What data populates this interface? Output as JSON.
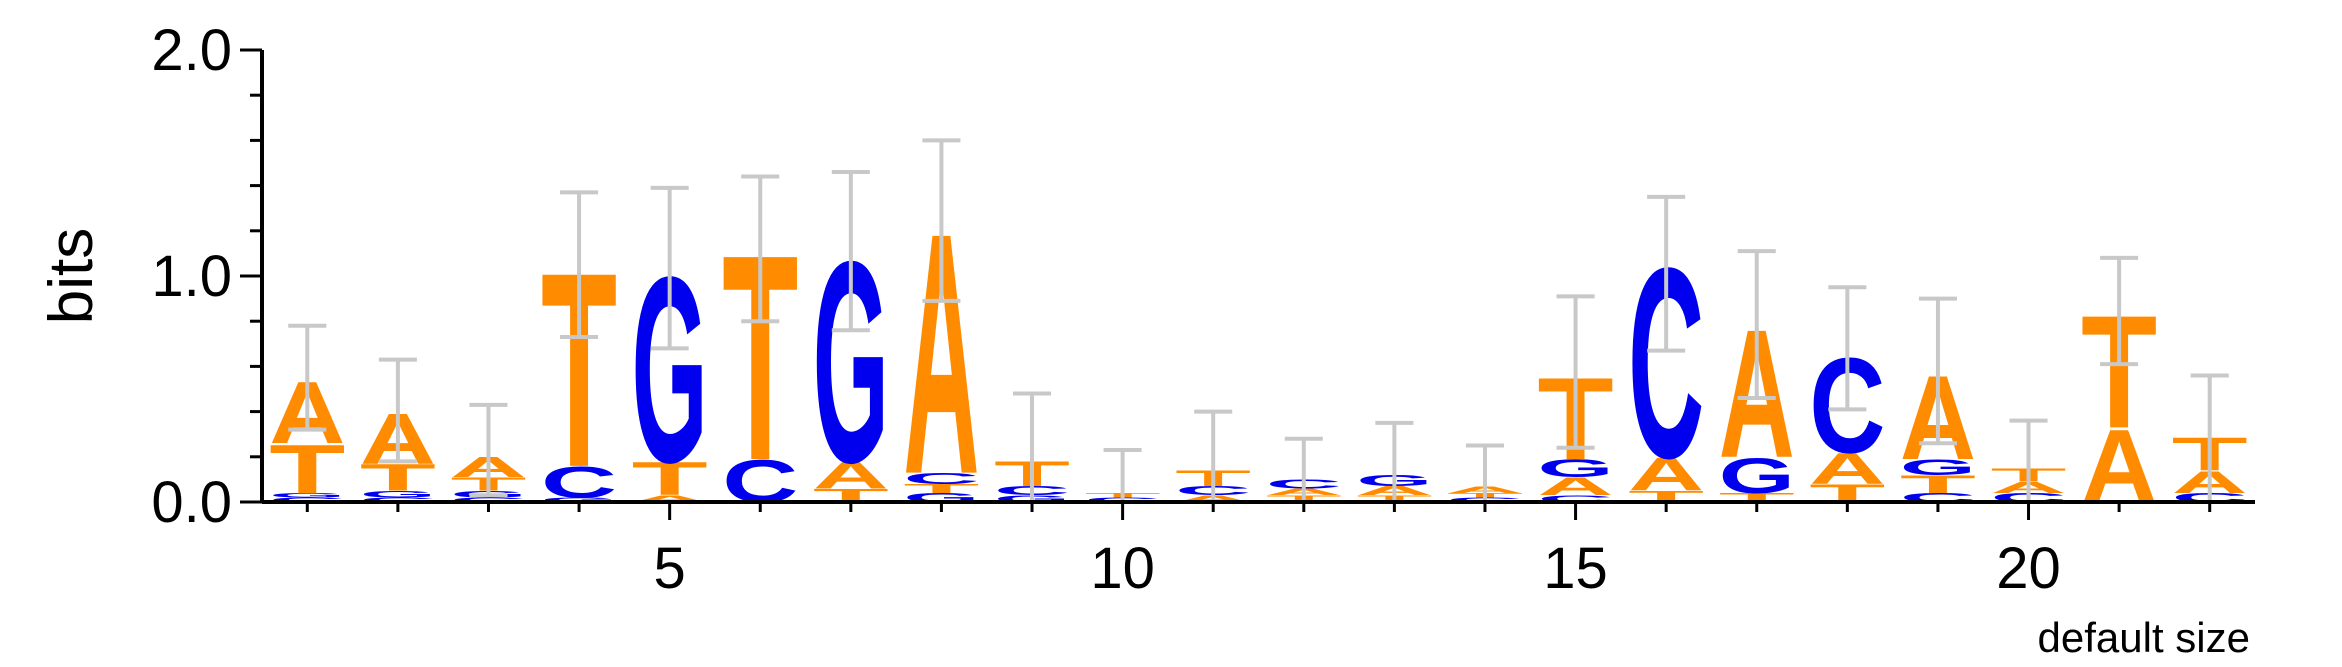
{
  "chart_data": {
    "type": "sequence-logo",
    "ylabel": "bits",
    "xlabel": "",
    "ylim": [
      0,
      2
    ],
    "y_ticks": [
      "0.0",
      "1.0",
      "2.0"
    ],
    "x_ticks": [
      "5",
      "10",
      "15",
      "20"
    ],
    "x_tick_values": [
      5,
      10,
      15,
      20
    ],
    "x_range": [
      0.5,
      22.5
    ],
    "footer": "default size",
    "colors": {
      "A": "#ff8c00",
      "T": "#ff8c00",
      "C": "#0000ee",
      "G": "#0000ee",
      "error_bar": "#c8c8c8",
      "axis": "#000000"
    },
    "positions": [
      {
        "pos": 1,
        "stack": [
          [
            "C",
            0.02
          ],
          [
            "G",
            0.02
          ],
          [
            "T",
            0.22
          ],
          [
            "A",
            0.28
          ]
        ],
        "err": [
          0.32,
          0.78
        ]
      },
      {
        "pos": 2,
        "stack": [
          [
            "C",
            0.02
          ],
          [
            "G",
            0.03
          ],
          [
            "T",
            0.12
          ],
          [
            "A",
            0.23
          ]
        ],
        "err": [
          0.18,
          0.63
        ]
      },
      {
        "pos": 3,
        "stack": [
          [
            "C",
            0.02
          ],
          [
            "G",
            0.03
          ],
          [
            "T",
            0.06
          ],
          [
            "A",
            0.09
          ]
        ],
        "err": [
          0.03,
          0.43
        ]
      },
      {
        "pos": 4,
        "stack": [
          [
            "G",
            0.02
          ],
          [
            "C",
            0.14
          ],
          [
            "T",
            0.88
          ]
        ],
        "err": [
          0.73,
          1.37
        ]
      },
      {
        "pos": 5,
        "stack": [
          [
            "A",
            0.03
          ],
          [
            "T",
            0.15
          ],
          [
            "G",
            0.84
          ]
        ],
        "err": [
          0.68,
          1.39
        ]
      },
      {
        "pos": 6,
        "stack": [
          [
            "C",
            0.19
          ],
          [
            "T",
            0.93
          ]
        ],
        "err": [
          0.8,
          1.44
        ]
      },
      {
        "pos": 7,
        "stack": [
          [
            "T",
            0.06
          ],
          [
            "A",
            0.12
          ],
          [
            "G",
            0.91
          ]
        ],
        "err": [
          0.76,
          1.46
        ]
      },
      {
        "pos": 8,
        "stack": [
          [
            "G",
            0.04
          ],
          [
            "T",
            0.04
          ],
          [
            "C",
            0.05
          ],
          [
            "A",
            1.09
          ]
        ],
        "err": [
          0.89,
          1.6
        ]
      },
      {
        "pos": 9,
        "stack": [
          [
            "G",
            0.03
          ],
          [
            "C",
            0.04
          ],
          [
            "T",
            0.11
          ]
        ],
        "err": [
          0.0,
          0.48
        ]
      },
      {
        "pos": 10,
        "stack": [
          [
            "C",
            0.02
          ],
          [
            "T",
            0.02
          ]
        ],
        "err": [
          0.0,
          0.23
        ]
      },
      {
        "pos": 11,
        "stack": [
          [
            "A",
            0.03
          ],
          [
            "C",
            0.04
          ],
          [
            "T",
            0.07
          ]
        ],
        "err": [
          0.0,
          0.4
        ]
      },
      {
        "pos": 12,
        "stack": [
          [
            "T",
            0.03
          ],
          [
            "A",
            0.03
          ],
          [
            "C",
            0.04
          ]
        ],
        "err": [
          0.0,
          0.28
        ]
      },
      {
        "pos": 13,
        "stack": [
          [
            "T",
            0.03
          ],
          [
            "A",
            0.04
          ],
          [
            "G",
            0.05
          ]
        ],
        "err": [
          0.0,
          0.35
        ]
      },
      {
        "pos": 14,
        "stack": [
          [
            "C",
            0.02
          ],
          [
            "T",
            0.02
          ],
          [
            "A",
            0.03
          ]
        ],
        "err": [
          0.0,
          0.25
        ]
      },
      {
        "pos": 15,
        "stack": [
          [
            "C",
            0.03
          ],
          [
            "A",
            0.08
          ],
          [
            "G",
            0.08
          ],
          [
            "T",
            0.37
          ]
        ],
        "err": [
          0.24,
          0.91
        ]
      },
      {
        "pos": 16,
        "stack": [
          [
            "T",
            0.05
          ],
          [
            "A",
            0.15
          ],
          [
            "C",
            0.86
          ]
        ],
        "err": [
          0.67,
          1.35
        ]
      },
      {
        "pos": 17,
        "stack": [
          [
            "T",
            0.04
          ],
          [
            "G",
            0.16
          ],
          [
            "A",
            0.58
          ]
        ],
        "err": [
          0.46,
          1.11
        ]
      },
      {
        "pos": 18,
        "stack": [
          [
            "T",
            0.08
          ],
          [
            "A",
            0.14
          ],
          [
            "C",
            0.43
          ]
        ],
        "err": [
          0.41,
          0.95
        ]
      },
      {
        "pos": 19,
        "stack": [
          [
            "C",
            0.04
          ],
          [
            "T",
            0.08
          ],
          [
            "G",
            0.07
          ],
          [
            "A",
            0.38
          ]
        ],
        "err": [
          0.26,
          0.9
        ]
      },
      {
        "pos": 20,
        "stack": [
          [
            "C",
            0.04
          ],
          [
            "A",
            0.05
          ],
          [
            "T",
            0.06
          ]
        ],
        "err": [
          0.0,
          0.36
        ]
      },
      {
        "pos": 21,
        "stack": [
          [
            "A",
            0.33
          ],
          [
            "T",
            0.51
          ]
        ],
        "err": [
          0.61,
          1.08
        ]
      },
      {
        "pos": 22,
        "stack": [
          [
            "C",
            0.04
          ],
          [
            "A",
            0.1
          ],
          [
            "T",
            0.15
          ]
        ],
        "err": [
          0.0,
          0.56
        ]
      }
    ]
  }
}
